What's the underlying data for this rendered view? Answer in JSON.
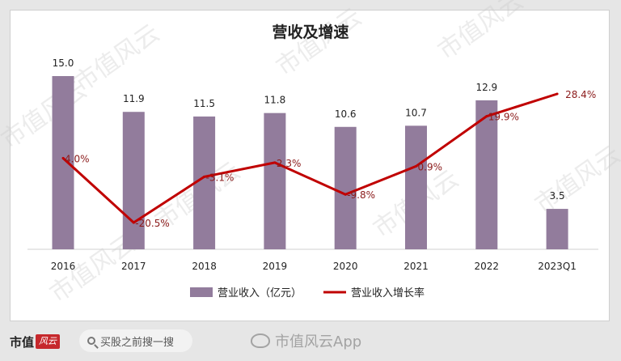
{
  "chart_data": {
    "type": "bar+line",
    "title": "营收及增速",
    "categories": [
      "2016",
      "2017",
      "2018",
      "2019",
      "2020",
      "2021",
      "2022",
      "2023Q1"
    ],
    "series": [
      {
        "name": "营业收入（亿元）",
        "type": "bar",
        "values": [
          15.0,
          11.9,
          11.5,
          11.8,
          10.6,
          10.7,
          12.9,
          3.5
        ],
        "labels": [
          "15.0",
          "11.9",
          "11.5",
          "11.8",
          "10.6",
          "10.7",
          "12.9",
          "3.5"
        ],
        "color": "#927c9c"
      },
      {
        "name": "营业收入增长率",
        "type": "line",
        "values": [
          4.0,
          -20.5,
          -3.1,
          2.3,
          -9.8,
          0.9,
          19.9,
          28.4
        ],
        "labels": [
          "4.0%",
          "-20.5%",
          "-3.1%",
          "2.3%",
          "-9.8%",
          "0.9%",
          "19.9%",
          "28.4%"
        ],
        "color": "#c00000"
      }
    ],
    "bar_axis_range": [
      0,
      15.0
    ],
    "line_axis_range": [
      -20.5,
      28.4
    ],
    "grid": false,
    "legend": "bottom"
  },
  "watermark": "市值风云",
  "footer": {
    "brand_text": "市值",
    "brand_logo_text": "风云",
    "search_placeholder": "买股之前搜一搜",
    "app_label": "市值风云App"
  },
  "colors": {
    "bar": "#927c9c",
    "line": "#c00000",
    "line_label": "#8b1a1a",
    "text": "#222222"
  }
}
